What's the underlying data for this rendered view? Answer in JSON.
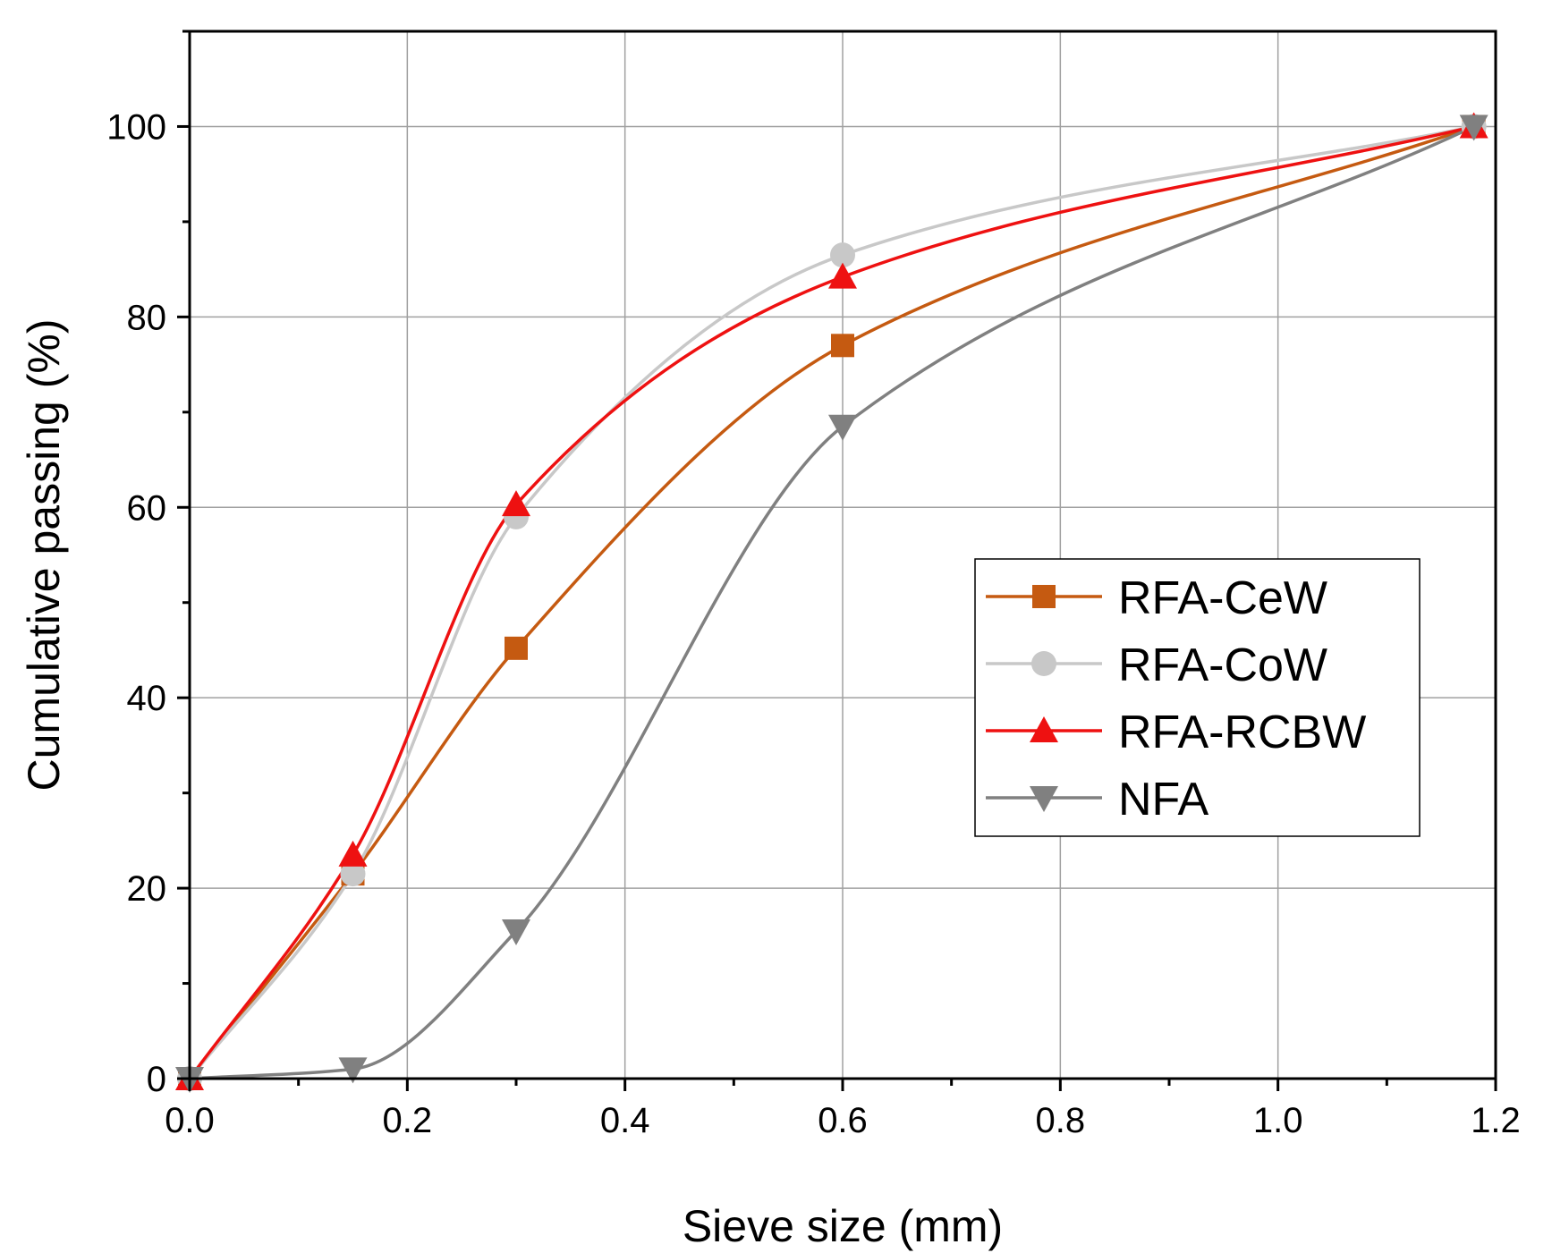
{
  "chart_data": {
    "type": "line",
    "title": "",
    "xlabel": "Sieve size (mm)",
    "ylabel": "Cumulative passing (%)",
    "xlim": [
      0,
      1.2
    ],
    "ylim": [
      0,
      110
    ],
    "xticks": [
      0.0,
      0.2,
      0.4,
      0.6,
      0.8,
      1.0,
      1.2
    ],
    "xtick_labels": [
      "0.0",
      "0.2",
      "0.4",
      "0.6",
      "0.8",
      "1.0",
      "1.2"
    ],
    "yticks": [
      0,
      20,
      40,
      60,
      80,
      100
    ],
    "ytick_labels": [
      "0",
      "20",
      "40",
      "60",
      "80",
      "100"
    ],
    "grid": true,
    "legend_position": "center-right",
    "series": [
      {
        "name": "RFA-CeW",
        "marker": "square",
        "color": "#c55a11",
        "x": [
          0,
          0.15,
          0.3,
          0.6,
          1.18
        ],
        "y": [
          0,
          21.5,
          45.2,
          77.0,
          100
        ]
      },
      {
        "name": "RFA-CoW",
        "marker": "circle",
        "color": "#c8c8c8",
        "x": [
          0,
          0.15,
          0.3,
          0.6,
          1.18
        ],
        "y": [
          0,
          21.5,
          59.0,
          86.5,
          100
        ]
      },
      {
        "name": "RFA-RCBW",
        "marker": "triangle-up",
        "color": "#ee1111",
        "x": [
          0,
          0.15,
          0.3,
          0.6,
          1.18
        ],
        "y": [
          0,
          23.5,
          60.3,
          84.2,
          100
        ]
      },
      {
        "name": "NFA",
        "marker": "triangle-down",
        "color": "#808080",
        "x": [
          0,
          0.15,
          0.3,
          0.6,
          1.18
        ],
        "y": [
          0,
          1.0,
          15.5,
          68.5,
          100
        ]
      }
    ]
  }
}
